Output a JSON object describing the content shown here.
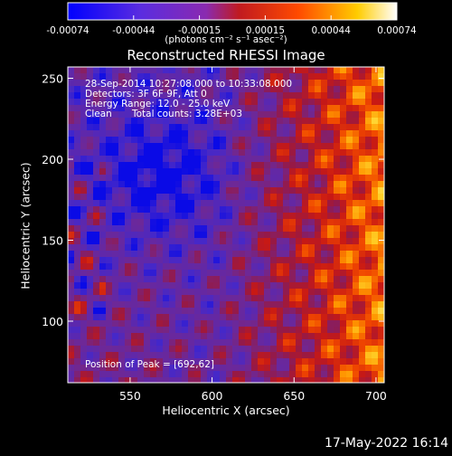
{
  "colorbar": {
    "tick_labels": [
      "-0.00074",
      "-0.00044",
      "-0.00015",
      "0.00015",
      "0.00044",
      "0.00074"
    ],
    "units": "(photons cm⁻² s⁻¹ asec⁻²)",
    "range": [
      -0.00074,
      0.00074
    ],
    "colors": [
      "#0000ff",
      "#7a2bc4",
      "#b02020",
      "#ff4000",
      "#ffd000",
      "#ffffff"
    ]
  },
  "chart_data": {
    "type": "heatmap",
    "title": "Reconstructed RHESSI Image",
    "xlabel": "Heliocentric X (arcsec)",
    "ylabel": "Heliocentric Y (arcsec)",
    "xlim": [
      512,
      705
    ],
    "ylim": [
      62,
      257
    ],
    "x_ticks": [
      550,
      600,
      650,
      700
    ],
    "y_ticks": [
      100,
      150,
      200,
      250
    ],
    "peak_marker": {
      "x": 692,
      "y": 62
    },
    "info": {
      "time": "28-Sep-2014 10:27:08.000 to 10:33:08.000",
      "detectors": "Detectors: 3F 6F 9F, Att 0",
      "energy": "Energy Range: 12.0 - 25.0 keV",
      "clean": "Clean",
      "counts": "Total counts: 3.28E+03",
      "peak": "Position of Peak = [692,62]"
    }
  },
  "footer": {
    "date": "17-May-2022 16:14"
  }
}
